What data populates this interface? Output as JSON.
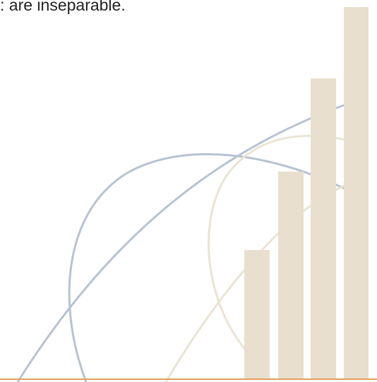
{
  "caption": ": are inseparable."
}
